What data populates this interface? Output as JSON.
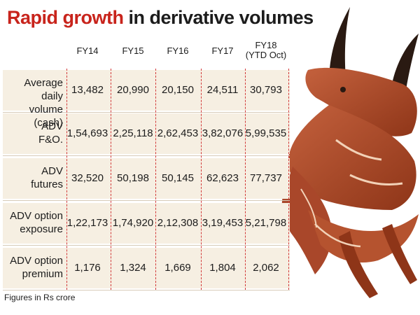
{
  "title": {
    "accent": "Rapid growth",
    "rest": "in derivative volumes"
  },
  "footnote": "Figures in Rs crore",
  "colors": {
    "accent": "#c8241c",
    "band": "#f6efe2",
    "divider": "#d23a3a",
    "bull": "#a9472a"
  },
  "illustration": "bull-icon",
  "chart_data": {
    "type": "table",
    "title": "Rapid growth in derivative volumes",
    "columns": [
      "FY14",
      "FY15",
      "FY16",
      "FY17",
      "FY18\n(YTD Oct)"
    ],
    "rows": [
      {
        "label": "Average daily\nvolume (cash)",
        "values": [
          "13,482",
          "20,990",
          "20,150",
          "24,511",
          "30,793"
        ]
      },
      {
        "label": "ADV\nF&O.",
        "values": [
          "1,54,693",
          "2,25,118",
          "2,62,453",
          "3,82,076",
          "5,99,535"
        ]
      },
      {
        "label": "ADV\nfutures",
        "values": [
          "32,520",
          "50,198",
          "50,145",
          "62,623",
          "77,737"
        ]
      },
      {
        "label": "ADV option\nexposure",
        "values": [
          "1,22,173",
          "1,74,920",
          "2,12,308",
          "3,19,453",
          "5,21,798"
        ]
      },
      {
        "label": "ADV option\npremium",
        "values": [
          "1,176",
          "1,324",
          "1,669",
          "1,804",
          "2,062"
        ]
      }
    ],
    "unit": "Figures in Rs crore"
  }
}
